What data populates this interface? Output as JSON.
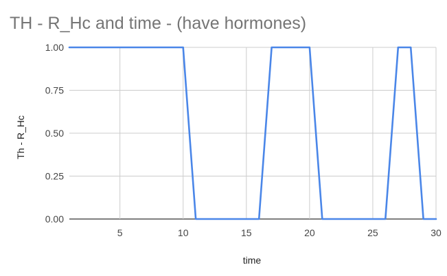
{
  "chart_data": {
    "type": "line",
    "title": "TH - R_Hc and time - (have hormones)",
    "xlabel": "time",
    "ylabel": "Th - R_Hc",
    "xlim": [
      1,
      30
    ],
    "ylim": [
      0,
      1
    ],
    "x_ticks": [
      5,
      10,
      15,
      20,
      25,
      30
    ],
    "y_ticks": [
      {
        "value": 0,
        "label": "0.00"
      },
      {
        "value": 0.25,
        "label": "0.25"
      },
      {
        "value": 0.5,
        "label": "0.50"
      },
      {
        "value": 0.75,
        "label": "0.75"
      },
      {
        "value": 1,
        "label": "1.00"
      }
    ],
    "grid": true,
    "legend": "none",
    "series": [
      {
        "color": "#4a86e8",
        "x": [
          1,
          2,
          3,
          4,
          5,
          6,
          7,
          8,
          9,
          10,
          11,
          12,
          13,
          14,
          15,
          16,
          17,
          18,
          19,
          20,
          21,
          22,
          23,
          24,
          25,
          26,
          27,
          28,
          29,
          30
        ],
        "y": [
          1,
          1,
          1,
          1,
          1,
          1,
          1,
          1,
          1,
          1,
          0,
          0,
          0,
          0,
          0,
          0,
          1,
          1,
          1,
          1,
          0,
          0,
          0,
          0,
          0,
          0,
          1,
          1,
          0,
          0
        ]
      }
    ]
  }
}
